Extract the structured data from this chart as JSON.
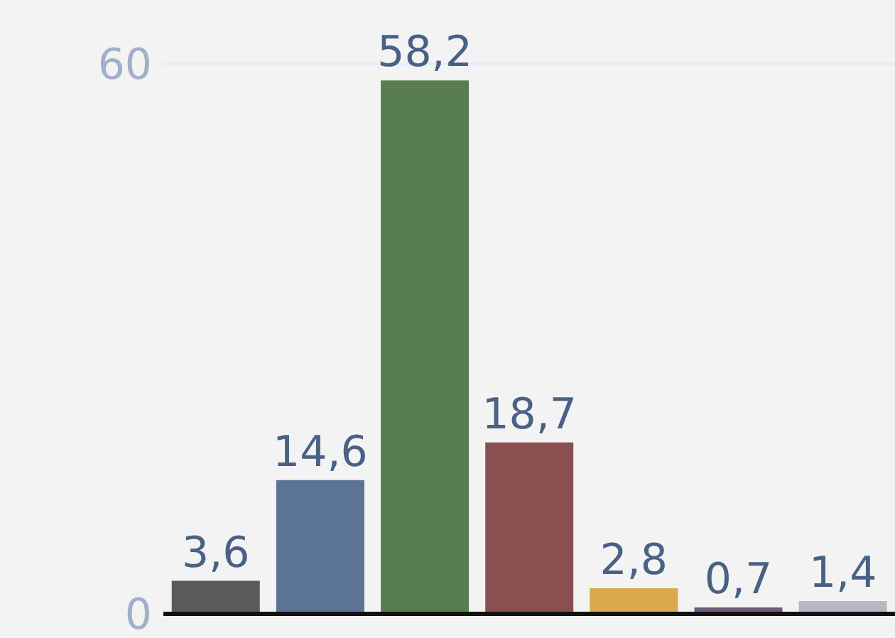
{
  "chart_data": {
    "type": "bar",
    "categories": [
      null,
      null,
      null,
      null,
      null,
      null,
      null
    ],
    "values": [
      3.6,
      14.6,
      58.2,
      18.7,
      2.8,
      0.7,
      1.4
    ],
    "colors": [
      "#5a5a5a",
      "#5b7496",
      "#587d4e",
      "#8c4f4f",
      "#d9a94c",
      "#6c5a7a",
      "#bdb5c4"
    ],
    "value_labels": [
      "3,6",
      "14,6",
      "58,2",
      "18,7",
      "2,8",
      "0,7",
      "1,4"
    ],
    "ylim": [
      0,
      60
    ],
    "yticks": [
      0,
      60
    ],
    "grid": "y"
  }
}
